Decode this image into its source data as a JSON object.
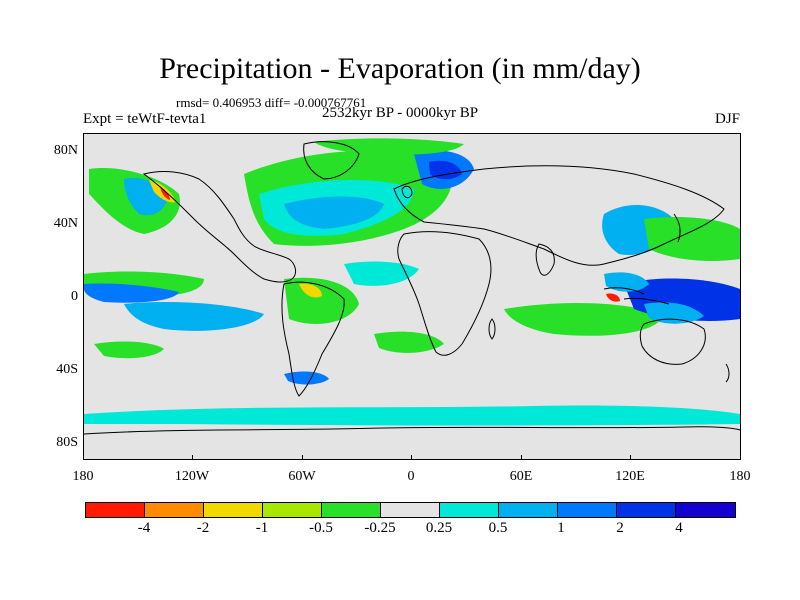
{
  "header": {
    "title": "Precipitation - Evaporation (in mm/day)",
    "stats": "rmsd= 0.406953 diff= -0.000767761",
    "experiment": "Expt = teWtF-tevta1",
    "period": "2532kyr BP - 0000kyr BP",
    "season": "DJF"
  },
  "axes": {
    "y_labels": [
      "80N",
      "40N",
      "0",
      "40S",
      "80S"
    ],
    "x_labels": [
      "180",
      "120W",
      "60W",
      "0",
      "60E",
      "120E",
      "180"
    ]
  },
  "colorbar": {
    "colors": [
      "#ff1a00",
      "#ff8c00",
      "#f0d800",
      "#a8e800",
      "#28e028",
      "#e4e4e4",
      "#00e8d8",
      "#00b0f0",
      "#0078ff",
      "#0032e8",
      "#1400d0",
      "#7000e0"
    ],
    "labels": [
      "-4",
      "-2",
      "-1",
      "-0.5",
      "-0.25",
      "0.25",
      "0.5",
      "1",
      "2",
      "4"
    ]
  },
  "map": {
    "background": "#e4e4e4",
    "coastline_color": "#000000"
  }
}
